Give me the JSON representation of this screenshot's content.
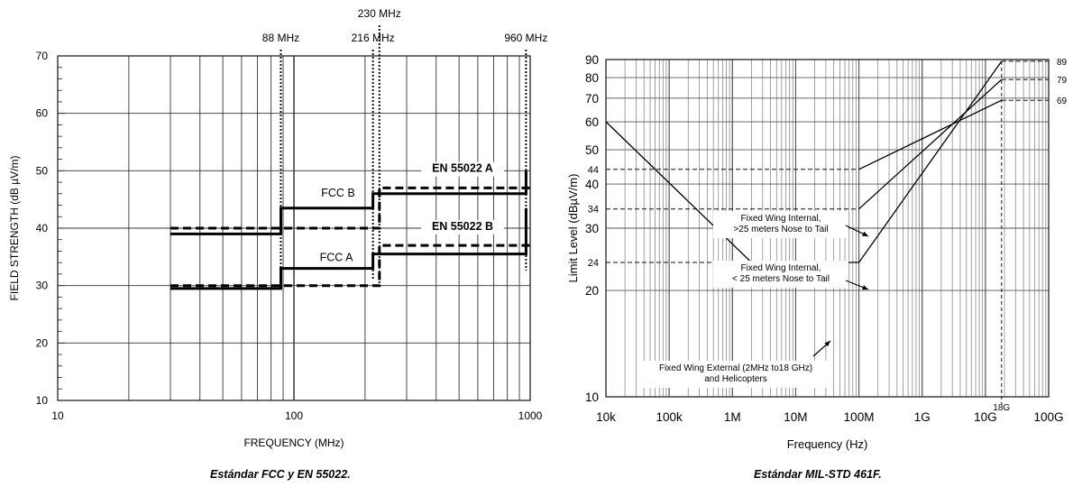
{
  "chart_data": [
    {
      "type": "line",
      "title": "",
      "xlabel": "FREQUENCY (MHz)",
      "ylabel": "FIELD STRENGTH (dB µV/m)",
      "x_scale": "log",
      "xlim": [
        10,
        1000
      ],
      "ylim": [
        10,
        70
      ],
      "grid": true,
      "x_ticks": [
        "10",
        "100",
        "1000"
      ],
      "y_ticks": [
        "10",
        "20",
        "30",
        "40",
        "50",
        "60",
        "70"
      ],
      "markers": [
        {
          "x": 88,
          "label": "88 MHz"
        },
        {
          "x": 216,
          "label": "216 MHz"
        },
        {
          "x": 230,
          "label": "230 MHz"
        },
        {
          "x": 960,
          "label": "960 MHz"
        }
      ],
      "series": [
        {
          "name": "FCC B",
          "style": "solid",
          "points": [
            [
              30,
              39
            ],
            [
              88,
              39
            ],
            [
              88,
              43.5
            ],
            [
              216,
              43.5
            ],
            [
              216,
              46
            ],
            [
              960,
              46
            ],
            [
              960,
              50
            ]
          ]
        },
        {
          "name": "EN 55022 A",
          "style": "dashed",
          "points": [
            [
              30,
              30
            ],
            [
              230,
              30
            ],
            [
              230,
              37
            ],
            [
              1000,
              37
            ]
          ]
        },
        {
          "name": "EN 55022 B",
          "style": "dashed",
          "points": [
            [
              30,
              40
            ],
            [
              230,
              40
            ],
            [
              230,
              47
            ],
            [
              1000,
              47
            ]
          ]
        },
        {
          "name": "FCC A",
          "style": "solid",
          "points": [
            [
              30,
              29.5
            ],
            [
              88,
              29.5
            ],
            [
              88,
              33
            ],
            [
              216,
              33
            ],
            [
              216,
              35.5
            ],
            [
              960,
              35.5
            ],
            [
              960,
              43.5
            ]
          ]
        }
      ],
      "labels": [
        "FCC B",
        "EN 55022 A",
        "EN 55022 B",
        "FCC A"
      ]
    },
    {
      "type": "line",
      "title": "",
      "xlabel": "Frequency (Hz)",
      "ylabel": "Limit Level (dBµV/m)",
      "x_scale": "log",
      "y_scale": "log",
      "xlim": [
        10000,
        100000000000
      ],
      "ylim": [
        10,
        90
      ],
      "grid": true,
      "x_ticks": [
        "10k",
        "100k",
        "1M",
        "10M",
        "100M",
        "1G",
        "10G",
        "100G"
      ],
      "y_ticks": [
        "10",
        "20",
        "30",
        "40",
        "50",
        "60",
        "70",
        "80",
        "90"
      ],
      "y_extra_ticks": [
        "24",
        "34",
        "44"
      ],
      "right_labels": [
        "89",
        "79",
        "69"
      ],
      "x_marker_label": "18G",
      "series": [
        {
          "name": "Fixed Wing Internal, >25 meters Nose to Tail",
          "points": [
            [
              10000,
              60
            ],
            [
              2000000,
              24
            ],
            [
              100000000,
              24
            ],
            [
              18000000000,
              89
            ],
            [
              100000000000,
              89
            ]
          ]
        },
        {
          "name": "Fixed Wing Internal, < 25 meters Nose to Tail",
          "points": [
            [
              100000000,
              34
            ],
            [
              18000000000,
              79
            ],
            [
              100000000000,
              79
            ]
          ]
        },
        {
          "name": "Fixed Wing External (2MHz to18 GHz) and Helicopters",
          "points": [
            [
              100000000,
              44
            ],
            [
              18000000000,
              69
            ],
            [
              100000000000,
              69
            ]
          ]
        }
      ],
      "annotations": [
        {
          "lines": [
            "Fixed Wing Internal,",
            ">25 meters Nose to Tail"
          ]
        },
        {
          "lines": [
            "Fixed Wing Internal,",
            "< 25 meters Nose to Tail"
          ]
        },
        {
          "lines": [
            "Fixed Wing External (2MHz to18 GHz)",
            "and Helicopters"
          ]
        }
      ]
    }
  ],
  "captions": {
    "left": "Estándar FCC y EN 55022.",
    "right": "Estándar MIL-STD 461F."
  }
}
